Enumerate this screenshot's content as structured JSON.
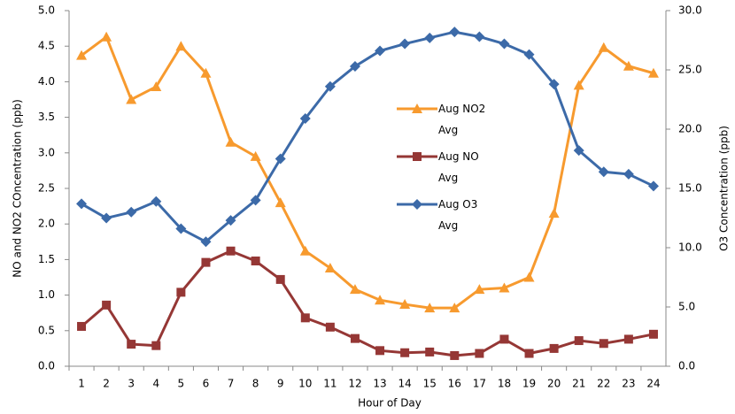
{
  "chart_data": {
    "type": "line",
    "x_label": "Hour of Day",
    "y_label": "NO and NO2 COncentration (ppb)",
    "y2_label": "O3 Concentration (ppb)",
    "categories": [
      "1",
      "2",
      "3",
      "4",
      "5",
      "6",
      "7",
      "8",
      "9",
      "10",
      "11",
      "12",
      "13",
      "14",
      "15",
      "16",
      "17",
      "18",
      "19",
      "20",
      "21",
      "22",
      "23",
      "24"
    ],
    "ylim": [
      0,
      5
    ],
    "yticks": [
      {
        "value": 0,
        "label": "0.0"
      },
      {
        "value": 0.5,
        "label": "0.5"
      },
      {
        "value": 1,
        "label": "1.0"
      },
      {
        "value": 1.5,
        "label": "1.5"
      },
      {
        "value": 2,
        "label": "2.0"
      },
      {
        "value": 2.5,
        "label": "2.5"
      },
      {
        "value": 3,
        "label": "3.0"
      },
      {
        "value": 3.5,
        "label": "3.5"
      },
      {
        "value": 4,
        "label": "4.0"
      },
      {
        "value": 4.5,
        "label": "4.5"
      },
      {
        "value": 5,
        "label": "5.0"
      }
    ],
    "y2lim": [
      0,
      30
    ],
    "y2ticks": [
      {
        "value": 0,
        "label": "0.0"
      },
      {
        "value": 5,
        "label": "5.0"
      },
      {
        "value": 10,
        "label": "10.0"
      },
      {
        "value": 15,
        "label": "15.0"
      },
      {
        "value": 20,
        "label": "20.0"
      },
      {
        "value": 25,
        "label": "25.0"
      },
      {
        "value": 30,
        "label": "30.0"
      }
    ],
    "grid": false,
    "series": [
      {
        "name": "Aug NO2 Avg",
        "color": "#f79a2e",
        "marker": "triangle",
        "values": [
          4.37,
          4.63,
          3.75,
          3.93,
          4.5,
          4.12,
          3.15,
          2.95,
          2.3,
          1.62,
          1.38,
          1.08,
          0.93,
          0.87,
          0.82,
          0.82,
          1.08,
          1.1,
          1.25,
          2.15,
          3.95,
          4.48,
          4.22,
          4.12
        ]
      },
      {
        "name": "Aug NO Avg",
        "color": "#953735",
        "marker": "square",
        "values": [
          0.56,
          0.86,
          0.31,
          0.29,
          1.04,
          1.46,
          1.62,
          1.48,
          1.22,
          0.68,
          0.55,
          0.39,
          0.22,
          0.19,
          0.2,
          0.15,
          0.18,
          0.38,
          0.18,
          0.25,
          0.36,
          0.32,
          0.38,
          0.45
        ]
      },
      {
        "name": "Aug O3 Avg",
        "color": "#3c6aa8",
        "marker": "diamond",
        "axis": "y2",
        "values": [
          13.7,
          12.5,
          13.0,
          13.9,
          11.6,
          10.5,
          12.3,
          14.0,
          17.5,
          20.9,
          23.6,
          25.3,
          26.6,
          27.2,
          27.7,
          28.2,
          27.8,
          27.2,
          26.3,
          23.8,
          18.2,
          16.4,
          16.2,
          15.2
        ]
      }
    ]
  }
}
